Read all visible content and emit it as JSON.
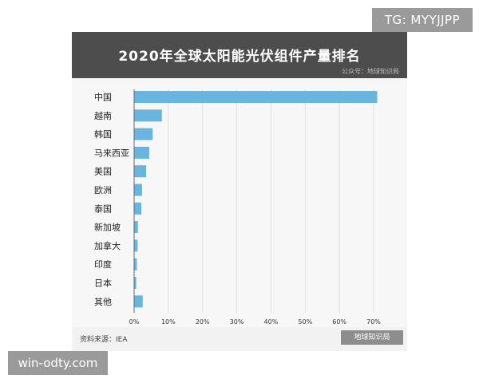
{
  "overlay": {
    "tg_badge": "TG: MYYJJPP",
    "site_badge": "win-odty.com"
  },
  "card": {
    "source_top": "公众号：地球知识局",
    "source_bottom": "资料来源：IEA",
    "watermark": "地球知识局"
  },
  "colors": {
    "bar": "#6ab4e0",
    "title_bg": "#4d4d4d",
    "panel": "#f2f2f2"
  },
  "chart_data": {
    "type": "bar",
    "orientation": "horizontal",
    "title": "2020年全球太阳能光伏组件产量排名",
    "categories": [
      "中国",
      "越南",
      "韩国",
      "马来西亚",
      "美国",
      "欧洲",
      "泰国",
      "新加坡",
      "加拿大",
      "印度",
      "日本",
      "其他"
    ],
    "values": [
      71,
      8,
      5.3,
      4.3,
      3.4,
      2.2,
      2,
      1,
      0.9,
      0.7,
      0.5,
      2.4
    ],
    "xlim": [
      0,
      70
    ],
    "xticks": [
      "0%",
      "10%",
      "20%",
      "30%",
      "40%",
      "50%",
      "60%",
      "70%"
    ],
    "xtick_values": [
      0,
      10,
      20,
      30,
      40,
      50,
      60,
      70
    ],
    "grid": true,
    "xlabel": "",
    "ylabel": ""
  }
}
